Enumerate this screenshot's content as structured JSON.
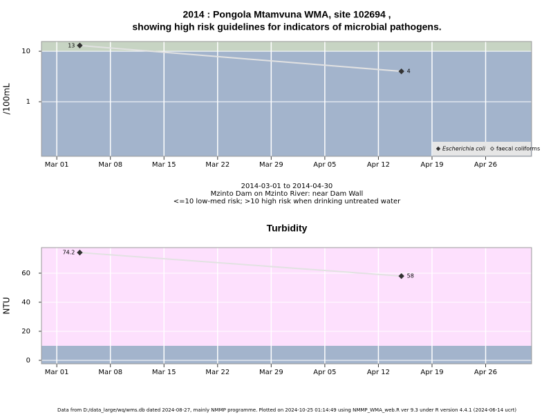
{
  "chart_data": [
    {
      "type": "line",
      "title": [
        "2014 : Pongola Mtamvuna WMA, site 102694 ,",
        "showing high risk guidelines for indicators of microbial pathogens."
      ],
      "y_label": "/100mL",
      "log_scale": true,
      "ylim": [
        0.083,
        15.6
      ],
      "yticks": [
        1,
        10
      ],
      "xlim": [
        "2014-02-27",
        "2014-05-02"
      ],
      "xticks": [
        {
          "value": "2014-03-01",
          "label": "Mar 01"
        },
        {
          "value": "2014-03-08",
          "label": "Mar 08"
        },
        {
          "value": "2014-03-15",
          "label": "Mar 15"
        },
        {
          "value": "2014-03-22",
          "label": "Mar 22"
        },
        {
          "value": "2014-03-29",
          "label": "Mar 29"
        },
        {
          "value": "2014-04-05",
          "label": "Apr 05"
        },
        {
          "value": "2014-04-12",
          "label": "Apr 12"
        },
        {
          "value": "2014-04-19",
          "label": "Apr 19"
        },
        {
          "value": "2014-04-26",
          "label": "Apr 26"
        }
      ],
      "grid": true,
      "threshold": 10,
      "color_above": "#c7d4c3",
      "color_below": "#a3b4cc",
      "line_color": "#e2e2e2",
      "x": [
        "2014-03-04",
        "2014-04-15"
      ],
      "series": [
        {
          "name": "Escherichia coli",
          "color": "#333333",
          "marker": "diamond",
          "values": [
            13,
            4
          ]
        },
        {
          "name": "faecal coliforms",
          "color": "#555555",
          "marker": "open-diamond",
          "values": [
            null,
            null
          ]
        }
      ],
      "legend": "bottom-right",
      "notes": [
        "2014-03-01 to 2014-04-30",
        "Mzinto Dam on Mzinto River: near Dam Wall",
        "<=10 low-med risk; >10 high risk when drinking untreated water"
      ]
    },
    {
      "type": "line",
      "title": "Turbidity",
      "y_label": "NTU",
      "log_scale": false,
      "ylim": [
        -2.4,
        77.6
      ],
      "yticks": [
        0,
        20,
        40,
        60
      ],
      "xlim": [
        "2014-02-27",
        "2014-05-02"
      ],
      "xticks": [
        {
          "value": "2014-03-01",
          "label": "Mar 01"
        },
        {
          "value": "2014-03-08",
          "label": "Mar 08"
        },
        {
          "value": "2014-03-15",
          "label": "Mar 15"
        },
        {
          "value": "2014-03-22",
          "label": "Mar 22"
        },
        {
          "value": "2014-03-29",
          "label": "Mar 29"
        },
        {
          "value": "2014-04-05",
          "label": "Apr 05"
        },
        {
          "value": "2014-04-12",
          "label": "Apr 12"
        },
        {
          "value": "2014-04-19",
          "label": "Apr 19"
        },
        {
          "value": "2014-04-26",
          "label": "Apr 26"
        }
      ],
      "grid": true,
      "threshold": 10,
      "color_above": "#fde0fd",
      "color_below": "#a3b4cc",
      "line_color": "#e2e2e2",
      "x": [
        "2014-03-04",
        "2014-04-15"
      ],
      "values": [
        74.2,
        58
      ],
      "color": "#333333"
    }
  ],
  "footer": "Data from D:/data_large/wq/wms.db dated 2024-08-27, mainly NMMP programme. Plotted on 2024-10-25 01:14:49 using NMMP_WMA_web.R ver 9.3 under R version 4.4.1 (2024-06-14 ucrt)"
}
